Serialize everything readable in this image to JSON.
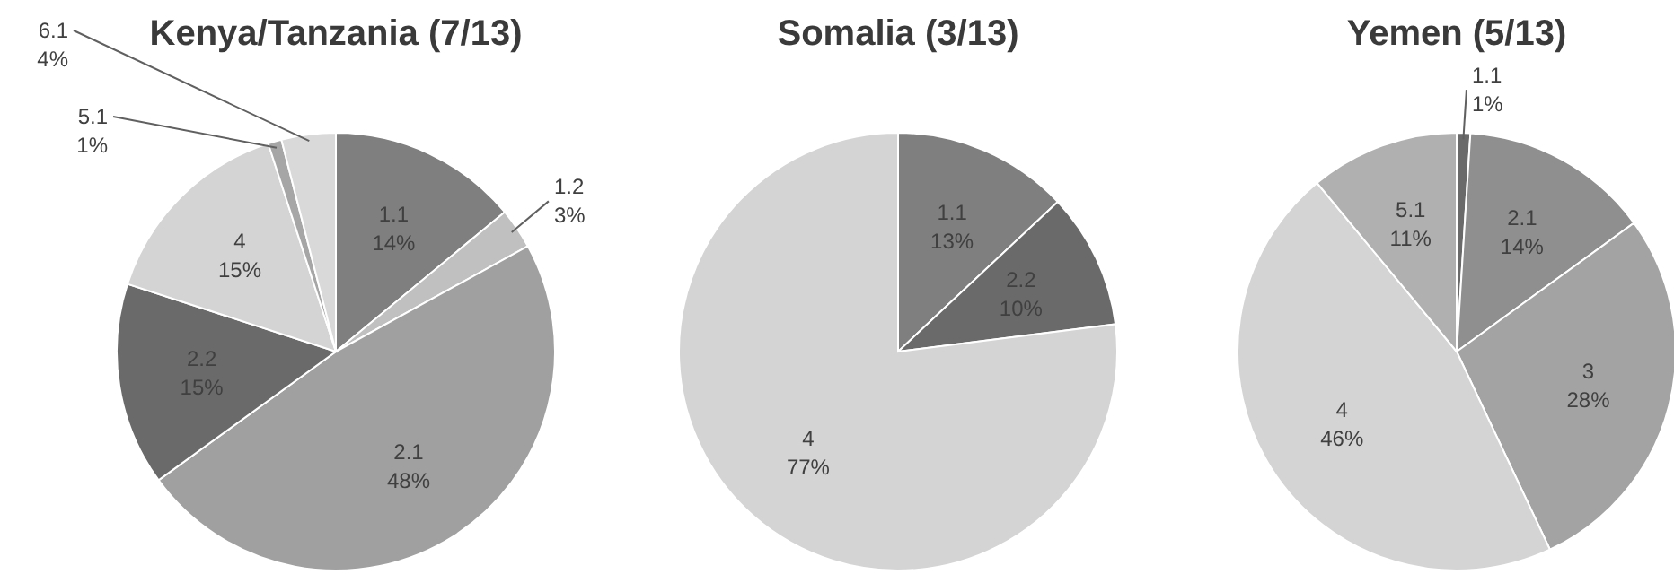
{
  "chart_data": [
    {
      "type": "pie",
      "title": "Kenya/Tanzania (7/13)",
      "categories": [
        "1.1",
        "1.2",
        "2.1",
        "2.2",
        "4",
        "5.1",
        "6.1"
      ],
      "values": [
        14,
        3,
        48,
        15,
        15,
        1,
        4
      ],
      "value_labels": [
        "14%",
        "3%",
        "48%",
        "15%",
        "15%",
        "1%",
        "4%"
      ],
      "colors": [
        "#7f7f7f",
        "#c0c0c0",
        "#a0a0a0",
        "#6a6a6a",
        "#d4d4d4",
        "#a6a6a6",
        "#d9d9d9"
      ]
    },
    {
      "type": "pie",
      "title": "Somalia (3/13)",
      "categories": [
        "1.1",
        "2.2",
        "4"
      ],
      "values": [
        13,
        10,
        77
      ],
      "value_labels": [
        "13%",
        "10%",
        "77%"
      ],
      "colors": [
        "#7f7f7f",
        "#6a6a6a",
        "#d4d4d4"
      ]
    },
    {
      "type": "pie",
      "title": "Yemen (5/13)",
      "categories": [
        "1.1",
        "2.1",
        "3",
        "4",
        "5.1"
      ],
      "values": [
        1,
        14,
        28,
        46,
        11
      ],
      "value_labels": [
        "1%",
        "14%",
        "28%",
        "46%",
        "11%"
      ],
      "colors": [
        "#6a6a6a",
        "#8f8f8f",
        "#a3a3a3",
        "#d4d4d4",
        "#b0b0b0"
      ]
    }
  ]
}
